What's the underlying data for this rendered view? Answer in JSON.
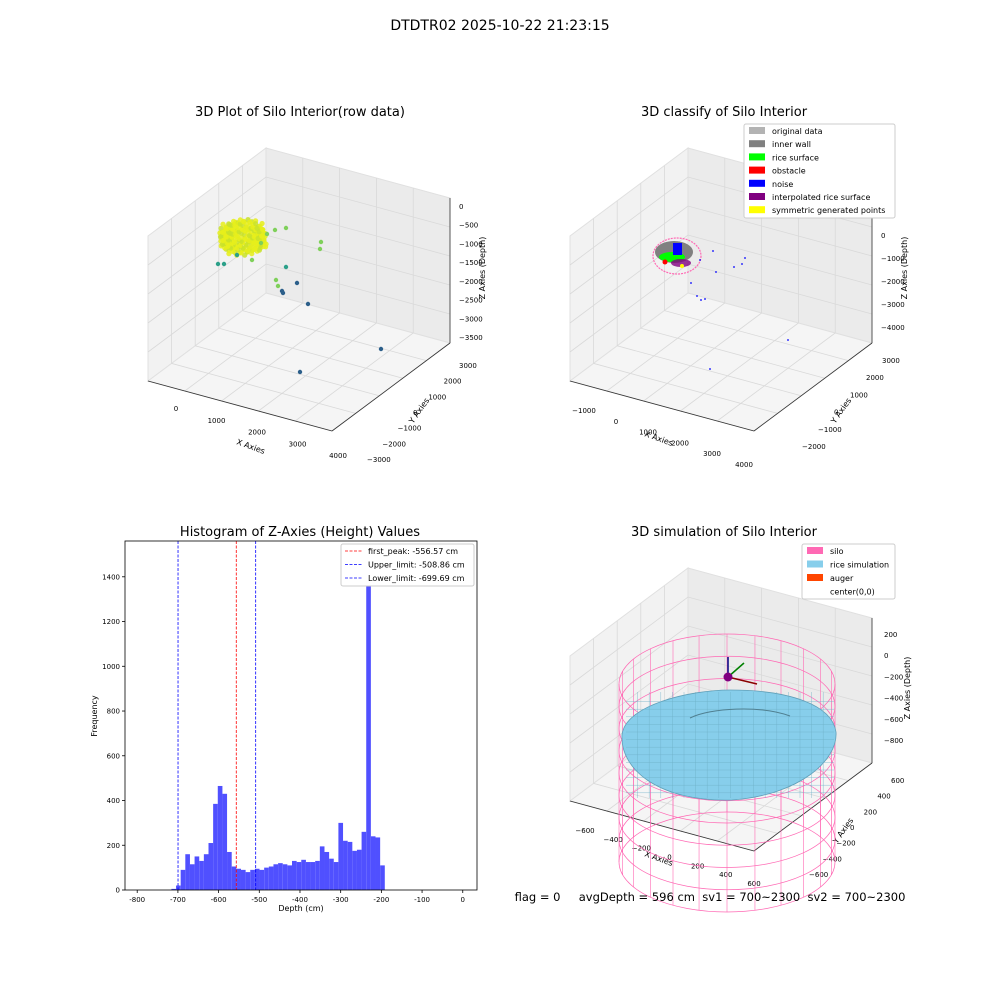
{
  "suptitle": "DTDTR02 2025-10-22 21:23:15",
  "footer": "flag = 0     avgDepth = 596 cm  sv1 = 700~2300  sv2 = 700~2300",
  "chart_data": [
    {
      "type": "scatter",
      "title": "3D Plot of Silo Interior(row data)",
      "xlabel": "X Axies",
      "ylabel": "Y Axies",
      "zlabel": "Z Axies (Depth)",
      "x_ticks": [
        "0",
        "1000",
        "2000",
        "3000",
        "4000"
      ],
      "y_ticks": [
        "−3000",
        "−2000",
        "−1000",
        "0",
        "1000",
        "2000",
        "3000"
      ],
      "z_ticks": [
        "0",
        "−500",
        "−1000",
        "−1500",
        "−2000",
        "−2500",
        "−3000",
        "−3500"
      ],
      "colormap": [
        "#2c5f8a",
        "#2ca089",
        "#7fd05a",
        "#c9e22a",
        "#e6ee1b"
      ],
      "grid": true
    },
    {
      "type": "scatter",
      "title": "3D classify of Silo Interior",
      "xlabel": "X Axies",
      "ylabel": "Y Axies",
      "zlabel": "Z Axies (Depth)",
      "x_ticks": [
        "−1000",
        "0",
        "1000",
        "2000",
        "3000",
        "4000"
      ],
      "y_ticks": [
        "−2000",
        "−1000",
        "0",
        "1000",
        "2000",
        "3000"
      ],
      "z_ticks": [
        "000",
        "0",
        "−1000",
        "−2000",
        "−3000",
        "−4000"
      ],
      "legend": [
        {
          "label": "original data",
          "color": "#b3b3b3"
        },
        {
          "label": "inner wall",
          "color": "#808080"
        },
        {
          "label": "rice surface",
          "color": "#00ff00"
        },
        {
          "label": "obstacle",
          "color": "#ff0000"
        },
        {
          "label": "noise",
          "color": "#0000ff"
        },
        {
          "label": "interpolated rice surface",
          "color": "#800080"
        },
        {
          "label": "symmetric generated points",
          "color": "#ffff00"
        }
      ],
      "legend_position": "upper-right",
      "grid": true
    },
    {
      "type": "bar",
      "title": "Histogram of Z-Axies (Height) Values",
      "xlabel": "Depth (cm)",
      "ylabel": "Frequency",
      "xlim": [
        -830,
        35
      ],
      "ylim": [
        0,
        1560
      ],
      "x_ticks": [
        -800,
        -700,
        -600,
        -500,
        -400,
        -300,
        -200,
        -100,
        0
      ],
      "y_ticks": [
        0,
        200,
        400,
        600,
        800,
        1000,
        1200,
        1400
      ],
      "bar_color": "#5050ff",
      "bin_width": 11.4,
      "bins_start": [
        -716.0,
        -704.6,
        -693.2,
        -681.8,
        -670.4,
        -659.0,
        -647.6,
        -636.2,
        -624.8,
        -613.4,
        -602.0,
        -590.6,
        -579.2,
        -567.8,
        -556.4,
        -545.0,
        -533.6,
        -522.2,
        -510.8,
        -499.4,
        -488.0,
        -476.6,
        -465.2,
        -453.8,
        -442.4,
        -431.0,
        -419.6,
        -408.2,
        -396.8,
        -385.4,
        -374.0,
        -362.6,
        -351.2,
        -339.8,
        -328.4,
        -317.0,
        -305.6,
        -294.2,
        -282.8,
        -271.4,
        -260.0,
        -248.6,
        -237.2,
        -225.8,
        -214.4,
        -203.0,
        -191.6,
        -180.2,
        -168.8,
        -157.4,
        -146.0,
        -134.6,
        -123.2,
        -111.8,
        -100.4,
        -89.0,
        -77.6,
        -66.2,
        -54.8,
        -43.4,
        -32.0,
        -20.6,
        -9.2
      ],
      "values": [
        5,
        20,
        90,
        160,
        115,
        150,
        130,
        160,
        210,
        385,
        465,
        430,
        170,
        105,
        95,
        90,
        80,
        90,
        95,
        90,
        100,
        105,
        115,
        120,
        115,
        110,
        130,
        125,
        135,
        125,
        125,
        130,
        195,
        170,
        140,
        125,
        300,
        220,
        215,
        175,
        180,
        260,
        1480,
        240,
        235,
        110,
        0,
        0,
        0,
        0,
        0,
        0,
        0,
        0,
        0,
        0,
        0,
        0,
        0,
        0,
        0,
        0,
        0
      ],
      "lines": [
        {
          "label": "first_peak: -556.57 cm",
          "value": -556.57,
          "color": "#ff0000"
        },
        {
          "label": "Upper_limit: -508.86 cm",
          "value": -508.86,
          "color": "#0000ff"
        },
        {
          "label": "Lower_limit: -699.69 cm",
          "value": -699.69,
          "color": "#0000ff"
        }
      ],
      "legend_position": "upper-right",
      "grid": false
    },
    {
      "type": "surface",
      "title": "3D simulation of Silo Interior",
      "xlabel": "X Axies",
      "ylabel": "Y Axies",
      "zlabel": "Z Axies (Depth)",
      "x_ticks": [
        "−600",
        "−400",
        "−200",
        "0",
        "200",
        "400",
        "600"
      ],
      "y_ticks": [
        "−600",
        "−400",
        "−200",
        "0",
        "200",
        "400",
        "600"
      ],
      "z_ticks": [
        "200",
        "0",
        "−200",
        "−400",
        "−600",
        "−800"
      ],
      "legend": [
        {
          "label": "silo",
          "color": "#ff69b4"
        },
        {
          "label": "rice simulation",
          "color": "#87ceeb"
        },
        {
          "label": "auger",
          "color": "#ff4500"
        },
        {
          "label": "center(0,0)",
          "color": "none"
        }
      ],
      "legend_position": "upper-right",
      "grid": true
    }
  ]
}
